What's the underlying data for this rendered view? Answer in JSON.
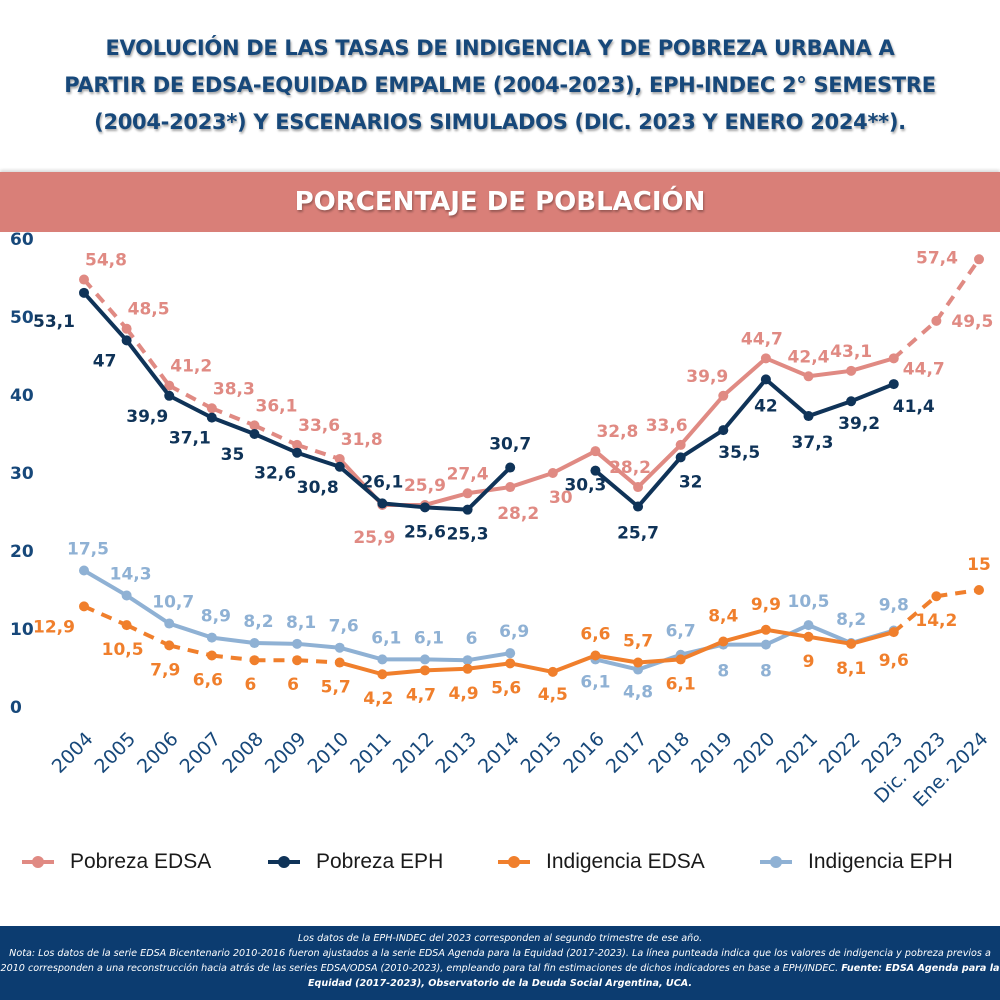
{
  "title": "EVOLUCIÓN DE LAS TASAS DE INDIGENCIA Y DE POBREZA URBANA A PARTIR DE EDSA-EQUIDAD EMPALME (2004-2023), EPH-INDEC 2° SEMESTRE (2004-2023*) Y ESCENARIOS SIMULADOS (DIC. 2023 Y ENERO 2024**).",
  "title_lines": [
    "EVOLUCIÓN DE LAS TASAS DE INDIGENCIA Y DE POBREZA URBANA A",
    "PARTIR DE EDSA-EQUIDAD EMPALME (2004-2023), EPH-INDEC 2° SEMESTRE",
    "(2004-2023*) Y ESCENARIOS SIMULADOS (DIC. 2023 Y ENERO 2024**)."
  ],
  "band_label": "PORCENTAJE DE POBLACIÓN",
  "colors": {
    "title": "#17487a",
    "band": "#d97f78",
    "pobreza_edsa": "#e08a83",
    "pobreza_eph": "#0f3358",
    "indigencia_edsa": "#f07f2c",
    "indigencia_eph": "#8fb1d4",
    "axis_text": "#17487a",
    "footer_bg": "#0c3c70"
  },
  "chart_data": {
    "type": "line",
    "title": "PORCENTAJE DE POBLACIÓN",
    "xlabel": "",
    "ylabel": "",
    "ylim": [
      0,
      60
    ],
    "yticks": [
      0,
      10,
      20,
      30,
      40,
      50,
      60
    ],
    "grid": false,
    "legend_position": "bottom",
    "categories": [
      "2004",
      "2005",
      "2006",
      "2007",
      "2008",
      "2009",
      "2010",
      "2011",
      "2012",
      "2013",
      "2014",
      "2015",
      "2016",
      "2017",
      "2018",
      "2019",
      "2020",
      "2021",
      "2022",
      "2023",
      "Dic. 2023",
      "Ene. 2024"
    ],
    "series": [
      {
        "name": "Pobreza EDSA",
        "color_key": "pobreza_edsa",
        "values": [
          54.8,
          48.5,
          41.2,
          38.3,
          36.1,
          33.6,
          31.8,
          25.9,
          25.9,
          27.4,
          28.2,
          30,
          32.8,
          28.2,
          33.6,
          39.9,
          44.7,
          42.4,
          43.1,
          44.7,
          49.5,
          57.4
        ],
        "labels": [
          "54,8",
          "48,5",
          "41,2",
          "38,3",
          "36,1",
          "33,6",
          "31,8",
          "25,9",
          "25,9",
          "27,4",
          "28,2",
          "30",
          "32,8",
          "28,2",
          "33,6",
          "39,9",
          "44,7",
          "42,4",
          "43,1",
          "44,7",
          "49,5",
          "57,4"
        ],
        "dashed_segments": [
          [
            0,
            6
          ],
          [
            19,
            21
          ]
        ]
      },
      {
        "name": "Pobreza EPH",
        "color_key": "pobreza_eph",
        "values": [
          53.1,
          47,
          39.9,
          37.1,
          35,
          32.6,
          30.8,
          26.1,
          25.6,
          25.3,
          30.7,
          null,
          30.3,
          25.7,
          32,
          35.5,
          42,
          37.3,
          39.2,
          41.4,
          null,
          null
        ],
        "labels": [
          "53,1",
          "47",
          "39,9",
          "37,1",
          "35",
          "32,6",
          "30,8",
          "26,1",
          "25,6",
          "25,3",
          "30,7",
          null,
          "30,3",
          "25,7",
          "32",
          "35,5",
          "42",
          "37,3",
          "39,2",
          "41,4",
          null,
          null
        ],
        "dashed_segments": []
      },
      {
        "name": "Indigencia EDSA",
        "color_key": "indigencia_edsa",
        "values": [
          12.9,
          10.5,
          7.9,
          6.6,
          6,
          6,
          5.7,
          4.2,
          4.7,
          4.9,
          5.6,
          4.5,
          6.6,
          5.7,
          6.1,
          8.4,
          9.9,
          9,
          8.1,
          9.6,
          14.2,
          15
        ],
        "labels": [
          "12,9",
          "10,5",
          "7,9",
          "6,6",
          "6",
          "6",
          "5,7",
          "4,2",
          "4,7",
          "4,9",
          "5,6",
          "4,5",
          "6,6",
          "5,7",
          "6,1",
          "8,4",
          "9,9",
          "9",
          "8,1",
          "9,6",
          "14,2",
          "15"
        ],
        "dashed_segments": [
          [
            0,
            6
          ],
          [
            19,
            21
          ]
        ]
      },
      {
        "name": "Indigencia EPH",
        "color_key": "indigencia_eph",
        "values": [
          17.5,
          14.3,
          10.7,
          8.9,
          8.2,
          8.1,
          7.6,
          6.1,
          6.1,
          6,
          6.9,
          null,
          6.1,
          4.8,
          6.7,
          8,
          8,
          10.5,
          8.2,
          9.8,
          null,
          null
        ],
        "labels": [
          "17,5",
          "14,3",
          "10,7",
          "8,9",
          "8,2",
          "8,1",
          "7,6",
          "6,1",
          "6,1",
          "6",
          "6,9",
          null,
          "6,1",
          "4,8",
          "6,7",
          "8",
          "8",
          "10,5",
          "8,2",
          "9,8",
          null,
          null
        ],
        "dashed_segments": []
      }
    ]
  },
  "legend": [
    {
      "label": "Pobreza EDSA",
      "color_key": "pobreza_edsa"
    },
    {
      "label": "Pobreza EPH",
      "color_key": "pobreza_eph"
    },
    {
      "label": "Indigencia EDSA",
      "color_key": "indigencia_edsa"
    },
    {
      "label": "Indigencia EPH",
      "color_key": "indigencia_eph"
    }
  ],
  "footer": {
    "line1": "Los datos de la EPH-INDEC del 2023 corresponden al segundo trimestre de ese año.",
    "note": "Nota: Los datos de la serie EDSA Bicentenario 2010-2016 fueron ajustados a la serie EDSA Agenda para la Equidad (2017-2023). La línea punteada indica que los valores de indigencia y pobreza previos a 2010 corresponden a una reconstrucción hacia atrás de las series EDSA/ODSA (2010-2023), empleando para tal fin estimaciones de dichos indicadores en base a EPH/INDEC.",
    "source": "Fuente: EDSA Agenda para la Equidad (2017-2023), Observatorio de la Deuda Social Argentina, UCA."
  }
}
